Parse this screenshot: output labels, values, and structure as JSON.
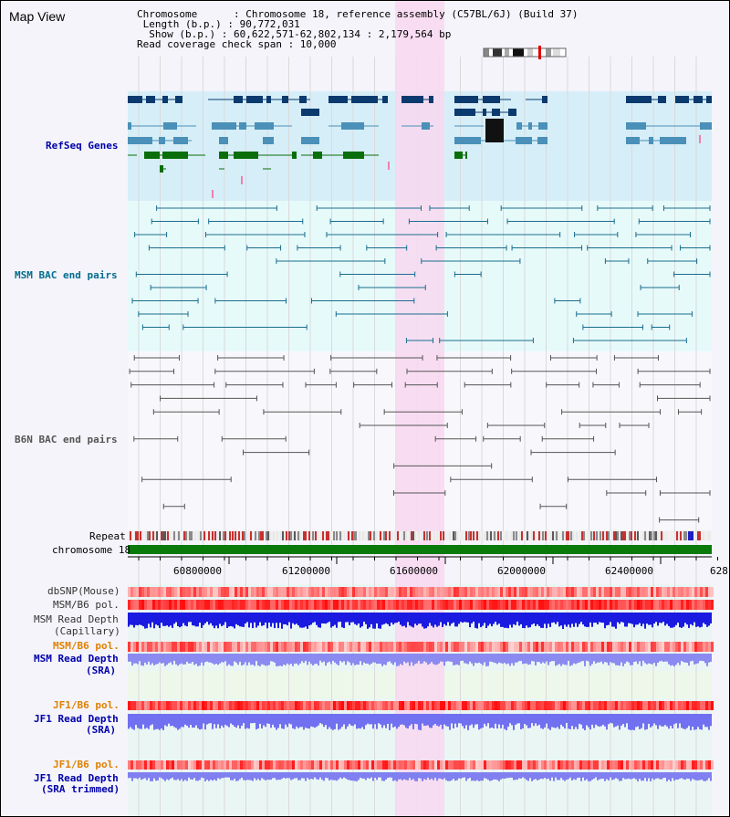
{
  "map_title": "Map View",
  "header": {
    "chromosome": "Chromosome      : Chromosome 18, reference assembly (C57BL/6J) (Build 37)",
    "length": " Length (b.p.) : 90,772,031",
    "show": "  Show (b.p.) : 60,622,571-62,802,134 : 2,179,564 bp",
    "coverage": "Read coverage check span : 10,000"
  },
  "tracks": {
    "refseq": "RefSeq Genes",
    "msm_bac": "MSM BAC end pairs",
    "b6n_bac": "B6N BAC end pairs",
    "repeat": "Repeat",
    "chromosome": "chromosome 18",
    "dbsnp": "dbSNP(Mouse)",
    "msm_b6_pol_1": "MSM/B6 pol.",
    "msm_depth_cap_1": "MSM Read Depth",
    "msm_depth_cap_2": "(Capillary)",
    "msm_b6_pol_2": "MSM/B6 pol.",
    "msm_depth_sra_1": "MSM Read Depth",
    "msm_depth_sra_2": "(SRA)",
    "jf1_b6_pol_1": "JF1/B6 pol.",
    "jf1_depth_sra_1": "JF1 Read Depth",
    "jf1_depth_sra_2": "(SRA)",
    "jf1_b6_pol_2": "JF1/B6 pol.",
    "jf1_depth_trim_1": "JF1 Read Depth",
    "jf1_depth_trim_2": "(SRA trimmed)"
  },
  "axis_ticks": [
    "60800000",
    "61200000",
    "61600000",
    "62000000",
    "62400000",
    "628"
  ],
  "colors": {
    "refseq_bg": "#d6eef8",
    "msm_bg": "#e6fafa",
    "b6n_bg": "#f8f8fc",
    "highlight": "#f8d8f0",
    "dark_gene": "#0a3a6e",
    "mid_gene": "#4a90b8",
    "green_gene": "#0a6e0a",
    "msm_line": "#1a6e8e",
    "b6n_line": "#555555",
    "label_blue": "#0000aa",
    "label_teal": "#006e8e",
    "label_orange": "#e08000"
  }
}
